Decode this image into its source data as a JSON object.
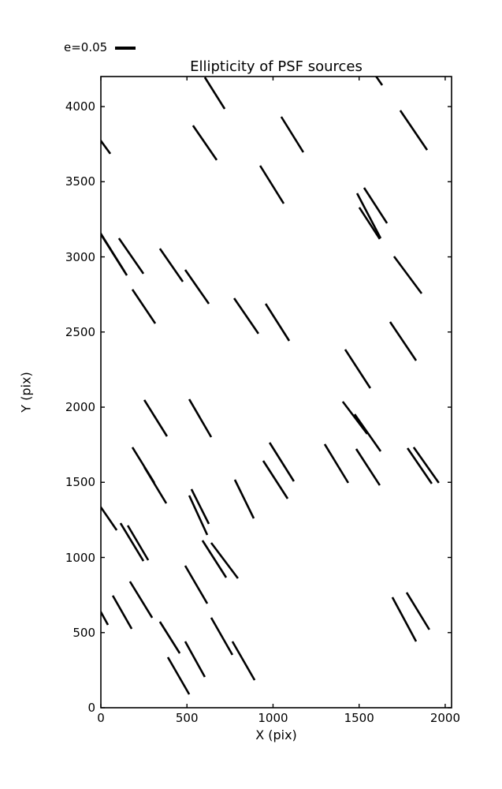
{
  "colors": {
    "line": "#000000",
    "background": "#ffffff",
    "axis": "#000000"
  },
  "chart_data": {
    "type": "scatter",
    "subtype": "whisker-segments",
    "title": "Ellipticity of PSF sources",
    "xlabel": "X (pix)",
    "ylabel": "Y (pix)",
    "legend_label": "e=0.05",
    "legend_position": "upper left outside",
    "xlim": [
      0,
      2037
    ],
    "ylim": [
      0,
      4200
    ],
    "xticks": [
      0,
      500,
      1000,
      1500,
      2000
    ],
    "yticks": [
      0,
      500,
      1000,
      1500,
      2000,
      2500,
      3000,
      3500,
      4000
    ],
    "grid": false,
    "segments": [
      [
        604,
        4195,
        719,
        3985
      ],
      [
        535,
        3874,
        673,
        3644
      ],
      [
        -5,
        3780,
        55,
        3686
      ],
      [
        1575,
        4240,
        1634,
        4142
      ],
      [
        1048,
        3932,
        1176,
        3696
      ],
      [
        1739,
        3974,
        1895,
        3711
      ],
      [
        925,
        3607,
        1062,
        3355
      ],
      [
        1529,
        3460,
        1662,
        3224
      ],
      [
        1488,
        3423,
        1625,
        3124
      ],
      [
        1501,
        3329,
        1620,
        3119
      ],
      [
        -9,
        3171,
        137,
        2903
      ],
      [
        0,
        3150,
        151,
        2877
      ],
      [
        105,
        3124,
        247,
        2888
      ],
      [
        343,
        3055,
        476,
        2835
      ],
      [
        490,
        2914,
        627,
        2688
      ],
      [
        183,
        2783,
        316,
        2557
      ],
      [
        774,
        2725,
        915,
        2489
      ],
      [
        1703,
        3003,
        1863,
        2756
      ],
      [
        957,
        2688,
        1094,
        2441
      ],
      [
        1680,
        2567,
        1831,
        2310
      ],
      [
        1419,
        2384,
        1565,
        2126
      ],
      [
        252,
        2048,
        384,
        1806
      ],
      [
        513,
        2053,
        641,
        1801
      ],
      [
        183,
        1733,
        311,
        1496
      ],
      [
        252,
        1601,
        380,
        1360
      ],
      [
        -9,
        1349,
        92,
        1181
      ],
      [
        1405,
        2037,
        1547,
        1822
      ],
      [
        1474,
        1953,
        1625,
        1706
      ],
      [
        980,
        1764,
        1121,
        1507
      ],
      [
        943,
        1643,
        1085,
        1391
      ],
      [
        1300,
        1754,
        1437,
        1496
      ],
      [
        1483,
        1722,
        1620,
        1480
      ],
      [
        1781,
        1727,
        1922,
        1491
      ],
      [
        1817,
        1733,
        1963,
        1496
      ],
      [
        526,
        1454,
        627,
        1223
      ],
      [
        513,
        1412,
        618,
        1150
      ],
      [
        778,
        1517,
        888,
        1260
      ],
      [
        114,
        1228,
        247,
        976
      ],
      [
        156,
        1213,
        275,
        982
      ],
      [
        590,
        1113,
        728,
        866
      ],
      [
        641,
        1097,
        796,
        861
      ],
      [
        69,
        746,
        179,
        525
      ],
      [
        169,
        840,
        298,
        599
      ],
      [
        -9,
        656,
        41,
        551
      ],
      [
        490,
        945,
        618,
        693
      ],
      [
        343,
        572,
        458,
        362
      ],
      [
        490,
        441,
        604,
        205
      ],
      [
        389,
        336,
        513,
        89
      ],
      [
        641,
        599,
        764,
        352
      ],
      [
        764,
        441,
        893,
        184
      ],
      [
        1693,
        735,
        1831,
        441
      ],
      [
        1776,
        767,
        1908,
        520
      ]
    ]
  }
}
